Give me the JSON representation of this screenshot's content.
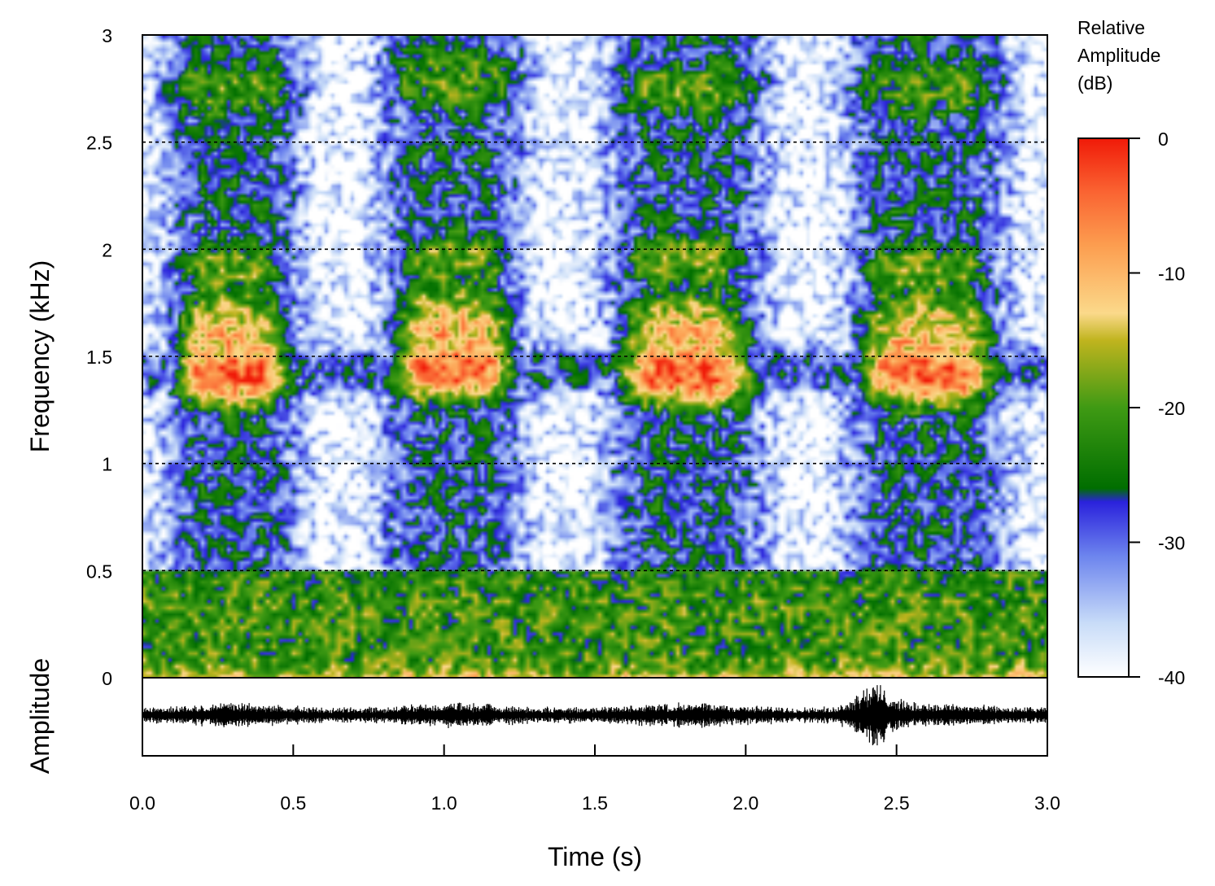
{
  "chart_data": {
    "type": "heatmap",
    "subtype": "spectrogram with oscillogram",
    "spectrogram": {
      "ylabel": "Frequency (kHz)",
      "ylim": [
        0,
        3
      ],
      "y_ticks": [
        0,
        0.5,
        1,
        1.5,
        2,
        2.5,
        3
      ],
      "y_tick_labels": [
        "0",
        "0.5",
        "1",
        "1.5",
        "2",
        "2.5",
        "3"
      ],
      "gridlines_y": [
        0.5,
        1,
        1.5,
        2,
        2.5
      ],
      "grid": "horizontal dotted",
      "calls": [
        {
          "t_start": 0.1,
          "t_end": 0.5,
          "t_center": 0.3,
          "peak_khz": 1.42,
          "bands_khz": [
            1.4,
            1.9,
            2.75
          ]
        },
        {
          "t_start": 0.83,
          "t_end": 1.25,
          "t_center": 1.03,
          "peak_khz": 1.45,
          "bands_khz": [
            1.4,
            1.95,
            2.8
          ]
        },
        {
          "t_start": 1.58,
          "t_end": 2.05,
          "t_center": 1.8,
          "peak_khz": 1.42,
          "bands_khz": [
            1.4,
            1.95,
            2.75
          ]
        },
        {
          "t_start": 2.38,
          "t_end": 2.85,
          "t_center": 2.6,
          "peak_khz": 1.42,
          "bands_khz": [
            1.4,
            1.9,
            2.75
          ]
        }
      ],
      "low_frequency_band_khz": [
        0,
        0.5
      ]
    },
    "oscillogram": {
      "ylabel": "Amplitude",
      "peak_time_s": 2.42
    },
    "x_axis": {
      "xlabel": "Time (s)",
      "xlim": [
        0,
        3
      ],
      "ticks": [
        0,
        0.5,
        1,
        1.5,
        2,
        2.5,
        3
      ],
      "tick_labels": [
        "0.0",
        "0.5",
        "1.0",
        "1.5",
        "2.0",
        "2.5",
        "3.0"
      ]
    },
    "colorbar": {
      "title": [
        "Relative",
        "Amplitude",
        "(dB)"
      ],
      "range": [
        -40,
        0
      ],
      "ticks": [
        0,
        -10,
        -20,
        -30,
        -40
      ],
      "tick_labels": [
        "0",
        "-10",
        "-20",
        "-30",
        "-40"
      ],
      "stops": [
        {
          "db": -40,
          "color": "#ffffff"
        },
        {
          "db": -36,
          "color": "#c8dcf8"
        },
        {
          "db": -31,
          "color": "#6c84ee"
        },
        {
          "db": -27,
          "color": "#2a22dc"
        },
        {
          "db": -26,
          "color": "#006e00"
        },
        {
          "db": -20,
          "color": "#3f9a14"
        },
        {
          "db": -15,
          "color": "#c0b41e"
        },
        {
          "db": -13,
          "color": "#fbd98a"
        },
        {
          "db": -8,
          "color": "#fc9e50"
        },
        {
          "db": -4,
          "color": "#fa6432"
        },
        {
          "db": 0,
          "color": "#f01a08"
        }
      ]
    }
  }
}
